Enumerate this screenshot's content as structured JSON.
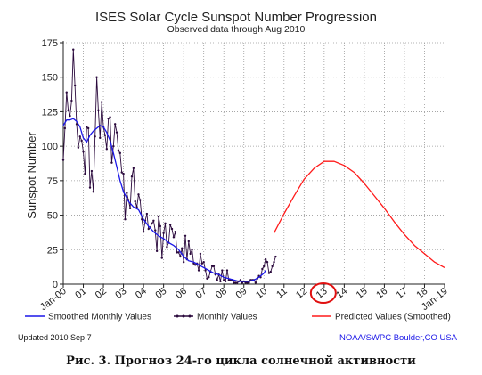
{
  "chart_data": {
    "type": "line",
    "title": "ISES Solar Cycle Sunspot Number Progression",
    "subtitle": "Observed data through Aug 2010",
    "ylabel": "Sunspot Number",
    "xlabel": "",
    "ylim": [
      0,
      175
    ],
    "xlim": [
      2000,
      2019
    ],
    "yticks": [
      0,
      25,
      50,
      75,
      100,
      125,
      150,
      175
    ],
    "xticks": [
      {
        "value": 2000,
        "label": "Jan-00"
      },
      {
        "value": 2001,
        "label": "01"
      },
      {
        "value": 2002,
        "label": "02"
      },
      {
        "value": 2003,
        "label": "03"
      },
      {
        "value": 2004,
        "label": "04"
      },
      {
        "value": 2005,
        "label": "05"
      },
      {
        "value": 2006,
        "label": "06"
      },
      {
        "value": 2007,
        "label": "07"
      },
      {
        "value": 2008,
        "label": "08"
      },
      {
        "value": 2009,
        "label": "09"
      },
      {
        "value": 2010,
        "label": "10"
      },
      {
        "value": 2011,
        "label": "11"
      },
      {
        "value": 2012,
        "label": "12"
      },
      {
        "value": 2013,
        "label": "13"
      },
      {
        "value": 2014,
        "label": "14"
      },
      {
        "value": 2015,
        "label": "15"
      },
      {
        "value": 2016,
        "label": "16"
      },
      {
        "value": 2017,
        "label": "17"
      },
      {
        "value": 2018,
        "label": "18"
      },
      {
        "value": 2019,
        "label": "Jan-19"
      }
    ],
    "highlight_tick": "13",
    "series": [
      {
        "name": "Monthly Values",
        "color": "#2b0a3d",
        "style": "line-markers",
        "x": [
          2000.0,
          2000.083,
          2000.167,
          2000.25,
          2000.333,
          2000.417,
          2000.5,
          2000.583,
          2000.667,
          2000.75,
          2000.833,
          2000.917,
          2001.0,
          2001.083,
          2001.167,
          2001.25,
          2001.333,
          2001.417,
          2001.5,
          2001.583,
          2001.667,
          2001.75,
          2001.833,
          2001.917,
          2002.0,
          2002.083,
          2002.167,
          2002.25,
          2002.333,
          2002.417,
          2002.5,
          2002.583,
          2002.667,
          2002.75,
          2002.833,
          2002.917,
          2003.0,
          2003.083,
          2003.167,
          2003.25,
          2003.333,
          2003.417,
          2003.5,
          2003.583,
          2003.667,
          2003.75,
          2003.833,
          2003.917,
          2004.0,
          2004.083,
          2004.167,
          2004.25,
          2004.333,
          2004.417,
          2004.5,
          2004.583,
          2004.667,
          2004.75,
          2004.833,
          2004.917,
          2005.0,
          2005.083,
          2005.167,
          2005.25,
          2005.333,
          2005.417,
          2005.5,
          2005.583,
          2005.667,
          2005.75,
          2005.833,
          2005.917,
          2006.0,
          2006.083,
          2006.167,
          2006.25,
          2006.333,
          2006.417,
          2006.5,
          2006.583,
          2006.667,
          2006.75,
          2006.833,
          2006.917,
          2007.0,
          2007.083,
          2007.167,
          2007.25,
          2007.333,
          2007.417,
          2007.5,
          2007.583,
          2007.667,
          2007.75,
          2007.833,
          2007.917,
          2008.0,
          2008.083,
          2008.167,
          2008.25,
          2008.333,
          2008.417,
          2008.5,
          2008.583,
          2008.667,
          2008.75,
          2008.833,
          2008.917,
          2009.0,
          2009.083,
          2009.167,
          2009.25,
          2009.333,
          2009.417,
          2009.5,
          2009.583,
          2009.667,
          2009.75,
          2009.833,
          2009.917,
          2010.0,
          2010.083,
          2010.167,
          2010.25,
          2010.333,
          2010.417,
          2010.5,
          2010.583
        ],
        "y": [
          90,
          113,
          139,
          126,
          122,
          133,
          170,
          144,
          116,
          99,
          107,
          104,
          96,
          80,
          114,
          113,
          70,
          82,
          67,
          107,
          150,
          126,
          106,
          132,
          114,
          108,
          98,
          120,
          121,
          88,
          100,
          116,
          110,
          97,
          95,
          81,
          80,
          47,
          66,
          61,
          55,
          78,
          84,
          60,
          56,
          65,
          61,
          47,
          38,
          46,
          51,
          40,
          41,
          44,
          46,
          39,
          24,
          49,
          42,
          19,
          37,
          44,
          27,
          30,
          43,
          40,
          34,
          38,
          23,
          23,
          20,
          26,
          16,
          35,
          18,
          31,
          22,
          25,
          15,
          14,
          15,
          10,
          22,
          15,
          16,
          10,
          4,
          5,
          9,
          13,
          13,
          7,
          3,
          7,
          2,
          10,
          3,
          2,
          10,
          3,
          3,
          3,
          1,
          1,
          1,
          2,
          3,
          1,
          2,
          1,
          1,
          1,
          3,
          3,
          3,
          1,
          4,
          6,
          5,
          11,
          13,
          18,
          16,
          8,
          9,
          13,
          16,
          20
        ]
      },
      {
        "name": "Smoothed Monthly Values",
        "color": "#1b17e8",
        "style": "line",
        "x": [
          2000.0,
          2000.167,
          2000.333,
          2000.5,
          2000.667,
          2000.833,
          2001.0,
          2001.167,
          2001.333,
          2001.5,
          2001.667,
          2001.833,
          2002.0,
          2002.167,
          2002.333,
          2002.5,
          2002.667,
          2002.833,
          2003.0,
          2003.25,
          2003.5,
          2003.75,
          2004.0,
          2004.25,
          2004.5,
          2004.75,
          2005.0,
          2005.25,
          2005.5,
          2005.75,
          2006.0,
          2006.25,
          2006.5,
          2006.75,
          2007.0,
          2007.25,
          2007.5,
          2007.75,
          2008.0,
          2008.25,
          2008.5,
          2008.75,
          2009.0,
          2009.25,
          2009.5,
          2009.75,
          2010.0,
          2010.083
        ],
        "y": [
          115,
          119,
          119,
          120,
          118,
          114,
          106,
          103,
          108,
          111,
          113,
          115,
          114,
          110,
          104,
          95,
          85,
          75,
          67,
          60,
          56,
          54,
          47,
          42,
          38,
          35,
          33,
          30,
          28,
          25,
          20,
          17,
          16,
          14,
          12,
          10,
          8,
          7,
          5,
          4,
          3,
          2,
          2,
          2,
          3,
          5,
          8,
          10
        ]
      },
      {
        "name": "Predicted Values (Smoothed)",
        "color": "#ff1a1a",
        "style": "line",
        "x": [
          2010.5,
          2011.0,
          2011.5,
          2012.0,
          2012.5,
          2013.0,
          2013.5,
          2014.0,
          2014.5,
          2015.0,
          2015.5,
          2016.0,
          2016.5,
          2017.0,
          2017.5,
          2018.0,
          2018.5,
          2019.0
        ],
        "y": [
          37,
          51,
          64,
          76,
          84,
          89,
          89,
          86,
          81,
          73,
          64,
          55,
          45,
          36,
          28,
          22,
          16,
          12
        ]
      }
    ],
    "legend": {
      "placement": "bottom",
      "entries": [
        "Smoothed Monthly Values",
        "Monthly Values",
        "Predicted Values (Smoothed)"
      ]
    },
    "footer_left": "Updated 2010 Sep  7",
    "footer_right": "NOAA/SWPC Boulder,CO USA"
  },
  "caption": "Рис. 3. Прогноз 24-го цикла солнечной активности"
}
